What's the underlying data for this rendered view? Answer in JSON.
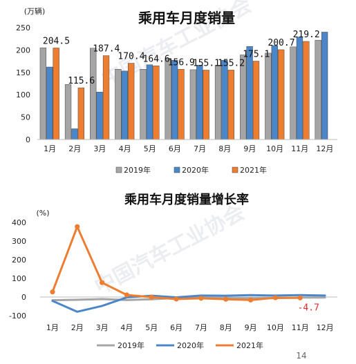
{
  "page_number": "14",
  "watermark": "中国汽车工业协会",
  "colors": {
    "2019": "#a5a5a5",
    "2020": "#4a86c8",
    "2021": "#ed7d31",
    "neg_label": "#e8262b"
  },
  "chart_data": [
    {
      "type": "bar",
      "title": "乘用车月度销量",
      "unit": "(万辆)",
      "categories": [
        "1月",
        "2月",
        "3月",
        "4月",
        "5月",
        "6月",
        "7月",
        "8月",
        "9月",
        "10月",
        "11月",
        "12月"
      ],
      "ylim": [
        0,
        250
      ],
      "yticks": [
        "0",
        "50",
        "100",
        "150",
        "200",
        "250"
      ],
      "legend_position": "bottom",
      "series": [
        {
          "name": "2019年",
          "values": [
            205,
            123,
            204,
            157,
            157,
            181,
            156,
            166,
            189,
            193,
            207,
            222
          ]
        },
        {
          "name": "2020年",
          "values": [
            162,
            24,
            106,
            153,
            167,
            177,
            166,
            177,
            208,
            210,
            229,
            240
          ]
        },
        {
          "name": "2021年",
          "values": [
            204.5,
            115.6,
            187.4,
            170.4,
            164.6,
            156.9,
            155.1,
            155.2,
            175.1,
            200.7,
            219.2,
            null
          ]
        }
      ],
      "data_labels": [
        {
          "category": "1月",
          "text": "204.5"
        },
        {
          "category": "2月",
          "text": "115.6"
        },
        {
          "category": "3月",
          "text": "187.4"
        },
        {
          "category": "4月",
          "text": "170.4"
        },
        {
          "category": "5月",
          "text": "164.6"
        },
        {
          "category": "6月",
          "text": "156.9"
        },
        {
          "category": "7月",
          "text": "155.1"
        },
        {
          "category": "8月",
          "text": "155.2"
        },
        {
          "category": "9月",
          "text": "175.1"
        },
        {
          "category": "10月",
          "text": "200.7"
        },
        {
          "category": "11月",
          "text": "219.2"
        }
      ]
    },
    {
      "type": "line",
      "title": "乘用车月度销量增长率",
      "unit": "(%)",
      "categories": [
        "1月",
        "2月",
        "3月",
        "4月",
        "5月",
        "6月",
        "7月",
        "8月",
        "9月",
        "10月",
        "11月",
        "12月"
      ],
      "ylim": [
        -100,
        400
      ],
      "yticks": [
        "-100",
        "0",
        "100",
        "200",
        "300",
        "400"
      ],
      "legend_position": "bottom",
      "series": [
        {
          "name": "2019年",
          "values": [
            -17,
            -15,
            -11,
            -16,
            -12,
            -5,
            -5,
            -7,
            -7,
            -6,
            -3,
            -3
          ]
        },
        {
          "name": "2020年",
          "values": [
            -21,
            -79,
            -48,
            -2,
            7,
            -2,
            8,
            7,
            10,
            8,
            10,
            8
          ]
        },
        {
          "name": "2021年",
          "values": [
            27,
            377,
            77,
            11,
            -1,
            -11,
            -7,
            -12,
            -16,
            -4,
            -4.7,
            null
          ]
        }
      ],
      "data_labels": [
        {
          "category": "11月",
          "series": "2021年",
          "text": "-4.7"
        }
      ]
    }
  ]
}
